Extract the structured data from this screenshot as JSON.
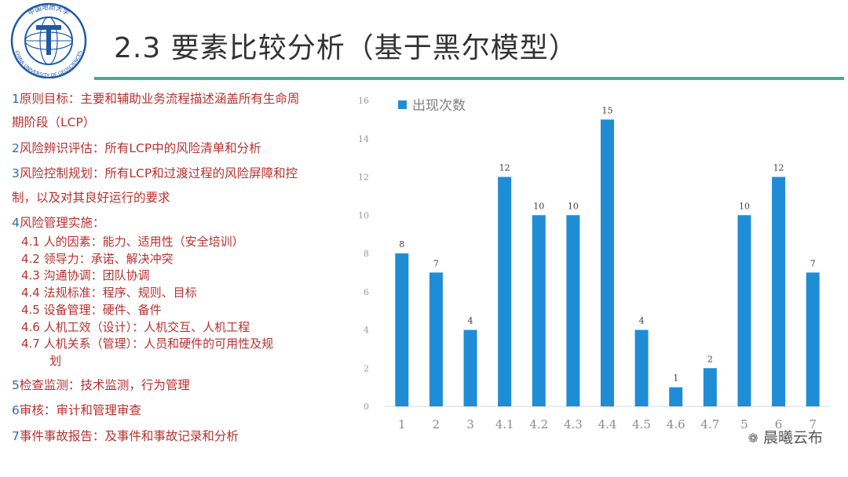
{
  "logo": {
    "text_top": "中国地质大学",
    "text_bottom": "CHINA UNIVERSITY OF GEOSCIENCES"
  },
  "title": "2.3 要素比较分析（基于黑尔模型）",
  "outline": {
    "items": [
      {
        "num": "1",
        "text": "原则目标：主要和辅助业务流程描述涵盖所有生命周",
        "cont": "期阶段（LCP）"
      },
      {
        "num": "2",
        "text": "风险辨识评估：所有LCP中的风险清单和分析"
      },
      {
        "num": "3",
        "text": "风险控制规划：所有LCP和过渡过程的风险屏障和控",
        "cont": "制，以及对其良好运行的要求"
      },
      {
        "num": "4",
        "text": "风险管理实施："
      },
      {
        "num": "5",
        "text": "检查监测：技术监测，行为管理"
      },
      {
        "num": "6",
        "text": "审核：审计和管理审查"
      },
      {
        "num": "7",
        "text": "事件事故报告：及事件和事故记录和分析"
      }
    ],
    "subitems": [
      {
        "num": "4.1",
        "text": "人的因素：能力、适用性（安全培训）"
      },
      {
        "num": "4.2",
        "text": "领导力：承诺、解决冲突"
      },
      {
        "num": "4.3",
        "text": "沟通协调：团队协调"
      },
      {
        "num": "4.4",
        "text": "法规标准：程序、规则、目标"
      },
      {
        "num": "4.5",
        "text": "设备管理：硬件、备件"
      },
      {
        "num": "4.6",
        "text": "人机工效（设计）：人机交互、人机工程"
      },
      {
        "num": "4.7",
        "text": "人机关系（管理）：人员和硬件的可用性及规",
        "cont": "划"
      }
    ]
  },
  "chart_data": {
    "type": "bar",
    "categories": [
      "1",
      "2",
      "3",
      "4.1",
      "4.2",
      "4.3",
      "4.4",
      "4.5",
      "4.6",
      "4.7",
      "5",
      "6",
      "7"
    ],
    "series": [
      {
        "name": "出现次数",
        "values": [
          8,
          7,
          4,
          12,
          10,
          10,
          15,
          4,
          1,
          2,
          10,
          12,
          7
        ],
        "color": "#1f8dd6"
      }
    ],
    "ylim": [
      0,
      16
    ],
    "yticks": [
      "0",
      "2",
      "4",
      "6",
      "8",
      "10",
      "12",
      "14",
      "16"
    ],
    "data_labels": true,
    "legend": "top-left",
    "grid": false
  },
  "watermark": "晨曦云布",
  "colors": {
    "accent": "#3eae92",
    "bar": "#1f8dd6",
    "num": "#2e6ab4",
    "text": "#b8312f"
  }
}
